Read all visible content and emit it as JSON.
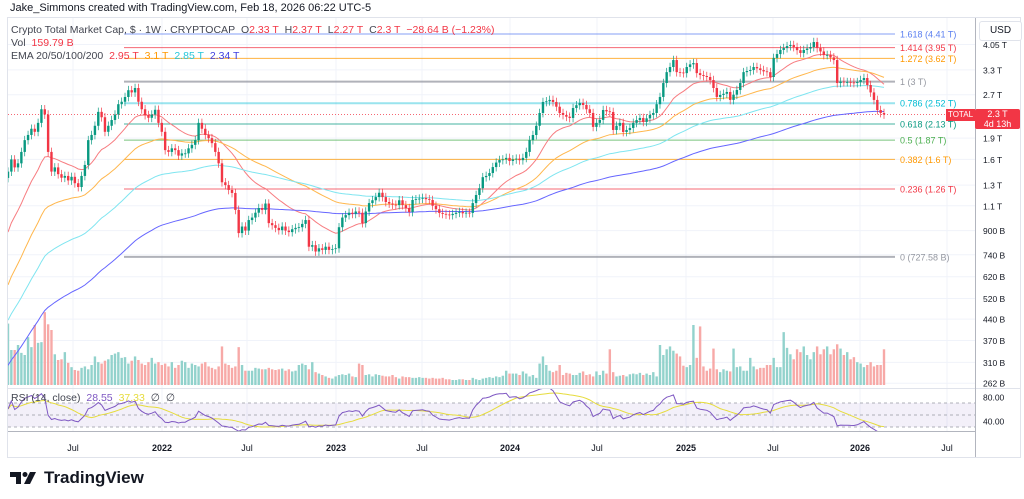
{
  "credit": "Jake_Simmons created with TradingView.com, Feb 18, 2026 06:22 UTC-5",
  "legend": {
    "symbol": "Crypto Total Market Cap, $ · 1W · CRYPTOCAP",
    "o_label": "O",
    "o": "2.33 T",
    "h_label": "H",
    "h": "2.37 T",
    "l_label": "L",
    "l": "2.27 T",
    "c_label": "C",
    "c": "2.3 T",
    "change": "−28.64 B (−1.23%)",
    "vol_label": "Vol",
    "vol": "159.79 B",
    "ema_label": "EMA 20/50/100/200",
    "ema20": "2.95 T",
    "ema50": "3.1 T",
    "ema100": "2.85 T",
    "ema200": "2.34 T"
  },
  "rsi_legend": {
    "label": "RSI (14, close)",
    "rsi": "28.55",
    "ma": "37.33",
    "icon1": "∅",
    "icon2": "∅"
  },
  "axis": {
    "currency": "USD"
  },
  "price_tag": {
    "symbol": "TOTAL",
    "price": "2.3 T",
    "countdown": "4d 13h"
  },
  "brand": "TradingView",
  "colors": {
    "up": "#089981",
    "down": "#f23645",
    "ema20": "#f23645",
    "ema50": "#ff9800",
    "ema100": "#4dd9ec",
    "ema200": "#5b5cf0",
    "rsi": "#7e57c2",
    "rsi_ma": "#e6dc3c"
  },
  "chart_data": {
    "type": "candlestick",
    "interval": "1W",
    "scale": "log",
    "unit": "B USD",
    "ylim": [
      262,
      4410
    ],
    "grid": true,
    "closes": [
      1450,
      1600,
      1500,
      1550,
      1700,
      1870,
      1950,
      2050,
      2000,
      2150,
      2400,
      2300,
      1700,
      1450,
      1500,
      1420,
      1380,
      1400,
      1350,
      1390,
      1320,
      1280,
      1400,
      1530,
      1870,
      1950,
      2100,
      2350,
      2250,
      2000,
      2100,
      2200,
      2300,
      2500,
      2550,
      2650,
      2800,
      2750,
      2850,
      2550,
      2400,
      2290,
      2240,
      2300,
      2390,
      2150,
      2000,
      1725,
      1700,
      1750,
      1725,
      1650,
      1680,
      1680,
      1750,
      1800,
      1870,
      2150,
      2050,
      1950,
      1900,
      1825,
      1700,
      1550,
      1330,
      1300,
      1250,
      1220,
      1064,
      882,
      930,
      900,
      980,
      1000,
      1040,
      1080,
      1064,
      1120,
      956,
      940,
      920,
      903,
      930,
      900,
      889,
      910,
      920,
      925,
      950,
      980,
      790,
      800,
      760,
      780,
      770,
      790,
      770,
      775,
      780,
      925,
      1000,
      1020,
      1040,
      1030,
      1050,
      1040,
      956,
      1050,
      1124,
      1150,
      1180,
      1222,
      1180,
      1134,
      1120,
      1110,
      1106,
      1150,
      1106,
      1080,
      1046,
      1153,
      1160,
      1165,
      1172,
      1160,
      1153,
      1100,
      1070,
      1038,
      1030,
      1025,
      1020,
      1030,
      1040,
      1046,
      1035,
      1040,
      1038,
      1124,
      1200,
      1268,
      1386,
      1400,
      1433,
      1504,
      1560,
      1592,
      1600,
      1620,
      1580,
      1600,
      1610,
      1590,
      1620,
      1700,
      1870,
      1949,
      2100,
      2329,
      2546,
      2560,
      2588,
      2546,
      2450,
      2329,
      2292,
      2260,
      2237,
      2424,
      2480,
      2526,
      2484,
      2400,
      2329,
      2081,
      2150,
      2202,
      2386,
      2360,
      2348,
      2030,
      2100,
      2150,
      1997,
      2030,
      2063,
      2150,
      2200,
      2237,
      2167,
      2230,
      2292,
      2329,
      2500,
      2651,
      2967,
      3240,
      3377,
      3573,
      3240,
      3230,
      3214,
      3377,
      3450,
      3487,
      3214,
      3165,
      3140,
      3115,
      3040,
      2850,
      2651,
      2694,
      2720,
      2760,
      2588,
      2700,
      2805,
      2967,
      3240,
      3270,
      3295,
      3377,
      3340,
      3295,
      3260,
      3240,
      3115,
      3635,
      3750,
      3876,
      3937,
      4000,
      4035,
      3970,
      3870,
      3783,
      3876,
      3920,
      3970,
      4133,
      3937,
      3830,
      3722,
      3722,
      3650,
      3573,
      2967,
      3000,
      2990,
      2990,
      2980,
      2967,
      2990,
      3040,
      3090,
      2920,
      2750,
      2588,
      2386,
      2329,
      2300
    ],
    "volumes": [
      430,
      245,
      245,
      280,
      225,
      210,
      335,
      265,
      420,
      295,
      300,
      510,
      425,
      385,
      215,
      175,
      180,
      230,
      155,
      125,
      105,
      100,
      120,
      130,
      110,
      140,
      200,
      160,
      150,
      170,
      180,
      210,
      220,
      230,
      190,
      195,
      150,
      170,
      200,
      175,
      150,
      140,
      160,
      190,
      150,
      160,
      140,
      150,
      130,
      160,
      120,
      140,
      170,
      160,
      120,
      150,
      140,
      130,
      150,
      160,
      130,
      120,
      110,
      130,
      270,
      150,
      140,
      120,
      130,
      265,
      140,
      100,
      100,
      100,
      120,
      115,
      110,
      110,
      120,
      110,
      105,
      110,
      115,
      100,
      110,
      95,
      100,
      140,
      150,
      140,
      110,
      160,
      90,
      80,
      70,
      60,
      50,
      45,
      60,
      70,
      75,
      70,
      80,
      60,
      55,
      150,
      140,
      70,
      75,
      60,
      75,
      70,
      65,
      60,
      60,
      70,
      55,
      45,
      60,
      55,
      55,
      50,
      50,
      55,
      50,
      50,
      45,
      50,
      45,
      45,
      50,
      40,
      40,
      35,
      35,
      40,
      40,
      35,
      35,
      50,
      40,
      35,
      45,
      50,
      55,
      50,
      60,
      55,
      65,
      100,
      80,
      80,
      80,
      70,
      95,
      80,
      60,
      70,
      50,
      150,
      200,
      140,
      100,
      90,
      100,
      140,
      70,
      85,
      80,
      70,
      70,
      85,
      95,
      70,
      75,
      60,
      95,
      70,
      100,
      80,
      250,
      90,
      60,
      65,
      70,
      60,
      75,
      80,
      75,
      85,
      70,
      80,
      70,
      90,
      60,
      280,
      210,
      250,
      270,
      240,
      220,
      200,
      135,
      125,
      140,
      420,
      190,
      410,
      130,
      100,
      115,
      255,
      110,
      90,
      110,
      100,
      95,
      255,
      125,
      130,
      100,
      100,
      190,
      130,
      110,
      120,
      120,
      140,
      140,
      190,
      125,
      125,
      370,
      260,
      215,
      180,
      250,
      230,
      270,
      210,
      180,
      230,
      270,
      215,
      250,
      270,
      215,
      250,
      285,
      255,
      210,
      230,
      180,
      195,
      160,
      150,
      125,
      140,
      160,
      130,
      140,
      140,
      250,
      160
    ],
    "ema_periods": [
      20,
      50,
      100,
      200
    ],
    "rsi_period": 14,
    "price_ticks": [
      {
        "label": "4.05 T",
        "value": 4050
      },
      {
        "label": "3.3 T",
        "value": 3300
      },
      {
        "label": "2.7 T",
        "value": 2700
      },
      {
        "label": "1.9 T",
        "value": 1900
      },
      {
        "label": "1.6 T",
        "value": 1600
      },
      {
        "label": "1.3 T",
        "value": 1300
      },
      {
        "label": "1.1 T",
        "value": 1100
      },
      {
        "label": "900 B",
        "value": 900
      },
      {
        "label": "740 B",
        "value": 740
      },
      {
        "label": "620 B",
        "value": 620
      },
      {
        "label": "520 B",
        "value": 520
      },
      {
        "label": "440 B",
        "value": 440
      },
      {
        "label": "370 B",
        "value": 370
      },
      {
        "label": "310 B",
        "value": 310
      },
      {
        "label": "262 B",
        "value": 262
      }
    ],
    "rsi_ticks": [
      {
        "label": "80.00",
        "value": 80
      },
      {
        "label": "40.00",
        "value": 40
      }
    ],
    "rsi_bands": [
      70,
      50,
      30
    ],
    "time_ticks": [
      {
        "label": "Jul",
        "bold": false
      },
      {
        "label": "2022",
        "bold": true
      },
      {
        "label": "Jul",
        "bold": false
      },
      {
        "label": "2023",
        "bold": true
      },
      {
        "label": "Jul",
        "bold": false
      },
      {
        "label": "2024",
        "bold": true
      },
      {
        "label": "Jul",
        "bold": false
      },
      {
        "label": "2025",
        "bold": true
      },
      {
        "label": "Jul",
        "bold": false
      },
      {
        "label": "2026",
        "bold": true
      },
      {
        "label": "Jul",
        "bold": false
      }
    ],
    "fib_levels": [
      {
        "label": "1.618 (4.41 T)",
        "value": 4410,
        "color": "#5b7ff0"
      },
      {
        "label": "1.414 (3.95 T)",
        "value": 3950,
        "color": "#f23645"
      },
      {
        "label": "1.272 (3.62 T)",
        "value": 3620,
        "color": "#ff9800"
      },
      {
        "label": "1 (3 T)",
        "value": 3000,
        "color": "#9598a1"
      },
      {
        "label": "0.786 (2.52 T)",
        "value": 2520,
        "color": "#00bcd4"
      },
      {
        "label": "0.618 (2.13 T)",
        "value": 2130,
        "color": "#089981"
      },
      {
        "label": "0.5 (1.87 T)",
        "value": 1870,
        "color": "#4caf50"
      },
      {
        "label": "0.382 (1.6 T)",
        "value": 1600,
        "color": "#ff9800"
      },
      {
        "label": "0.236 (1.26 T)",
        "value": 1260,
        "color": "#f23645"
      },
      {
        "label": "0 (727.58 B)",
        "value": 727.58,
        "color": "#9598a1"
      }
    ],
    "current_price": 2300
  }
}
